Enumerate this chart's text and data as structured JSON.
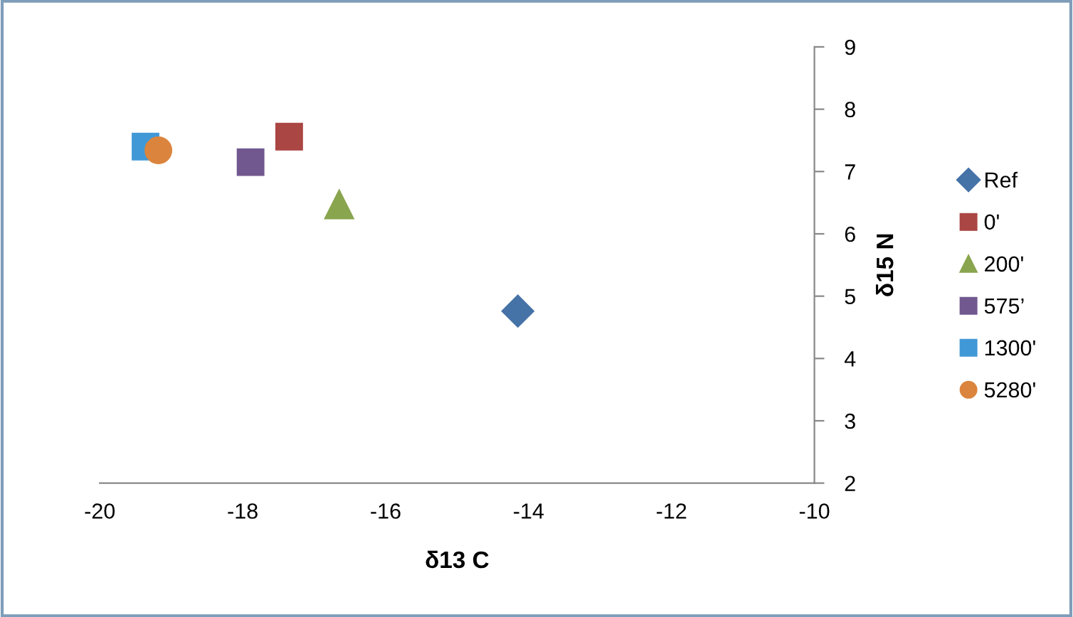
{
  "chart_data": {
    "type": "scatter",
    "xlabel": "δ13 C",
    "ylabel": "δ15 N",
    "xlim": [
      -20,
      -10
    ],
    "xticks": [
      -20,
      -18,
      -16,
      -14,
      -12,
      -10
    ],
    "ylim": [
      2,
      9
    ],
    "yticks": [
      2,
      3,
      4,
      5,
      6,
      7,
      8,
      9
    ],
    "grid": false,
    "legend": "right",
    "series": [
      {
        "name": "Ref",
        "color": "#4572a7",
        "marker": "diamond",
        "x": [
          -14.15
        ],
        "values": [
          4.76
        ]
      },
      {
        "name": "0'",
        "color": "#aa4643",
        "marker": "square",
        "x": [
          -17.35
        ],
        "values": [
          7.56
        ]
      },
      {
        "name": "200'",
        "color": "#89a54e",
        "marker": "triangle",
        "x": [
          -16.65
        ],
        "values": [
          6.47
        ]
      },
      {
        "name": "575’",
        "color": "#71588f",
        "marker": "square",
        "x": [
          -17.89
        ],
        "values": [
          7.15
        ]
      },
      {
        "name": "1300'",
        "color": "#4198d7",
        "marker": "square",
        "x": [
          -19.36
        ],
        "values": [
          7.4
        ]
      },
      {
        "name": "5280'",
        "color": "#db843d",
        "marker": "circle",
        "x": [
          -19.18
        ],
        "values": [
          7.34
        ]
      }
    ]
  }
}
